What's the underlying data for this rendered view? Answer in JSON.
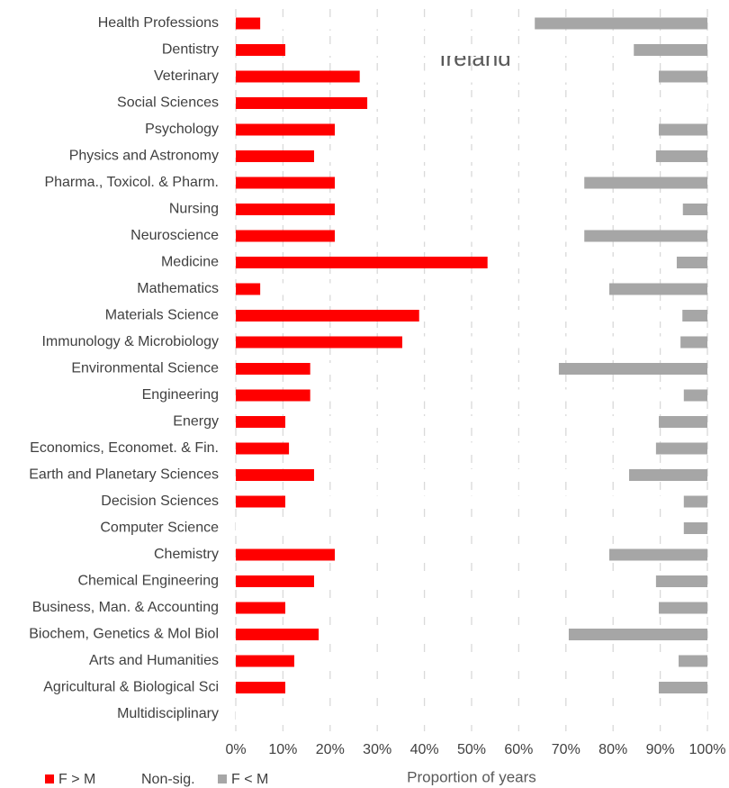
{
  "chart_data": {
    "type": "stacked-barh",
    "title": "Ireland",
    "xlabel": "Proportion of years",
    "categories": [
      "Health Professions",
      "Dentistry",
      "Veterinary",
      "Social Sciences",
      "Psychology",
      "Physics and Astronomy",
      "Pharma., Toxicol. & Pharm.",
      "Nursing",
      "Neuroscience",
      "Medicine",
      "Mathematics",
      "Materials Science",
      "Immunology & Microbiology",
      "Environmental Science",
      "Engineering",
      "Energy",
      "Economics, Economet. & Fin.",
      "Earth and Planetary Sciences",
      "Decision Sciences",
      "Computer Science",
      "Chemistry",
      "Chemical Engineering",
      "Business, Man. & Accounting",
      "Biochem, Genetics & Mol Biol",
      "Arts and Humanities",
      "Agricultural & Biological Sci",
      "Multidisciplinary"
    ],
    "series": [
      {
        "name": "F > M",
        "color": "#ff0000",
        "values": [
          5.2,
          10.5,
          26.3,
          27.9,
          21.0,
          16.6,
          21.0,
          21.0,
          21.0,
          53.4,
          5.2,
          38.9,
          35.3,
          15.8,
          15.8,
          10.5,
          11.3,
          16.6,
          10.5,
          0,
          21.0,
          16.6,
          10.5,
          17.6,
          12.4,
          10.5,
          0
        ]
      },
      {
        "name": "Non-sig.",
        "color": "#ffffff",
        "values": [
          58.2,
          73.9,
          63.4,
          72.1,
          68.7,
          72.5,
          52.9,
          73.8,
          52.9,
          40.1,
          74.0,
          55.8,
          59.0,
          52.7,
          79.2,
          79.2,
          77.8,
          66.8,
          84.5,
          95.0,
          58.2,
          72.5,
          79.2,
          53.0,
          81.5,
          79.2,
          100
        ]
      },
      {
        "name": "F < M",
        "color": "#a6a6a6",
        "values": [
          36.6,
          15.6,
          10.3,
          0,
          10.3,
          10.9,
          26.1,
          5.2,
          26.1,
          6.5,
          20.8,
          5.3,
          5.7,
          31.5,
          5.0,
          10.3,
          10.9,
          16.6,
          5.0,
          5.0,
          20.8,
          10.9,
          10.3,
          29.4,
          6.1,
          10.3,
          0
        ]
      }
    ],
    "xlim": [
      0,
      100
    ],
    "xticks": [
      {
        "value": 0,
        "label": "0%"
      },
      {
        "value": 10,
        "label": "10%"
      },
      {
        "value": 20,
        "label": "20%"
      },
      {
        "value": 30,
        "label": "30%"
      },
      {
        "value": 40,
        "label": "40%"
      },
      {
        "value": 50,
        "label": "50%"
      },
      {
        "value": 60,
        "label": "60%"
      },
      {
        "value": 70,
        "label": "70%"
      },
      {
        "value": 80,
        "label": "80%"
      },
      {
        "value": 90,
        "label": "90%"
      },
      {
        "value": 100,
        "label": "100%"
      }
    ],
    "grid": true,
    "legend": "bottom-left"
  }
}
